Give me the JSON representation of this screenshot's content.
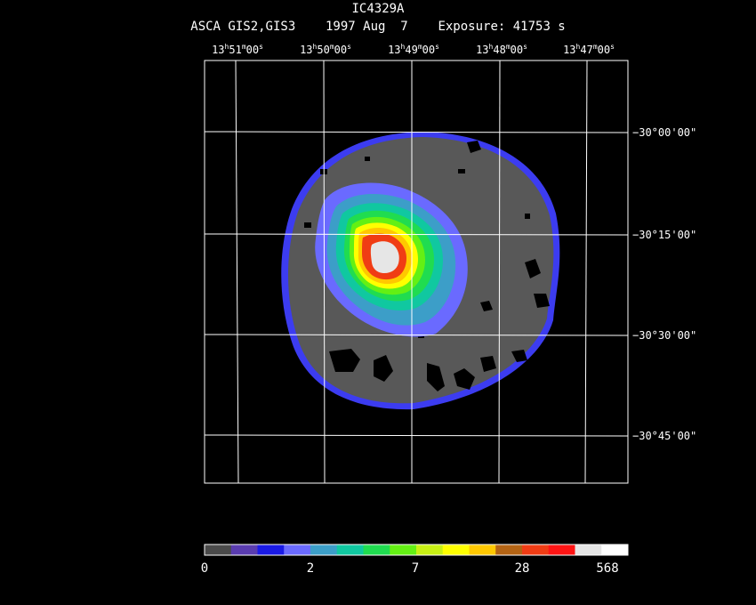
{
  "header": {
    "object": "IC4329A",
    "instrument": "ASCA GIS2,GIS3",
    "date": "1997 Aug  7",
    "exposure": "Exposure: 41753 s"
  },
  "ra_ticks": [
    {
      "h": "13",
      "m": "51",
      "s": "00"
    },
    {
      "h": "13",
      "m": "50",
      "s": "00"
    },
    {
      "h": "13",
      "m": "49",
      "s": "00"
    },
    {
      "h": "13",
      "m": "48",
      "s": "00"
    },
    {
      "h": "13",
      "m": "47",
      "s": "00"
    }
  ],
  "dec_ticks": [
    "−30°00'00\"",
    "−30°15'00\"",
    "−30°30'00\"",
    "−30°45'00\""
  ],
  "colorbar": {
    "colors": [
      "#4a4a4a",
      "#5a3cb0",
      "#1a1ae6",
      "#6a6aff",
      "#3c9ec8",
      "#10c8a0",
      "#20dc50",
      "#64f014",
      "#c8f014",
      "#ffff00",
      "#ffc800",
      "#b46414",
      "#f03c14",
      "#ff1414",
      "#e6e6e6",
      "#ffffff"
    ],
    "labels": [
      "0",
      "2",
      "7",
      "28",
      "568"
    ]
  }
}
